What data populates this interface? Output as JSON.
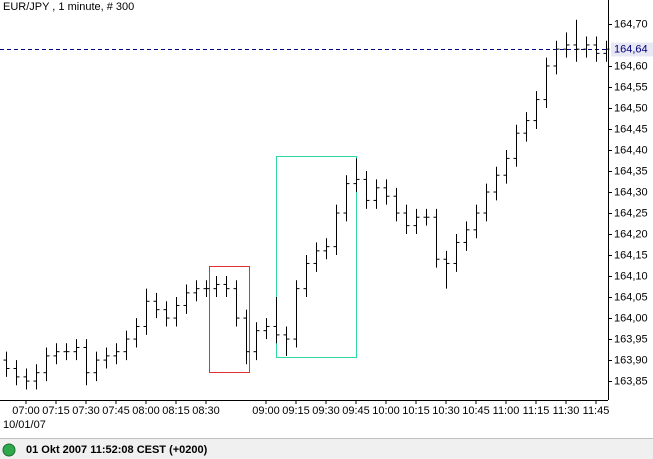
{
  "chart_data": {
    "type": "ohlc",
    "title": "EUR/JPY , 1 minute, # 300",
    "date_label": "10/01/07",
    "color": "#000000",
    "x": [
      "06:50",
      "06:55",
      "07:00",
      "07:05",
      "07:10",
      "07:15",
      "07:20",
      "07:25",
      "07:30",
      "07:35",
      "07:40",
      "07:45",
      "07:50",
      "07:55",
      "08:00",
      "08:05",
      "08:10",
      "08:15",
      "08:20",
      "08:25",
      "08:30",
      "08:35",
      "08:40",
      "08:45",
      "08:50",
      "08:55",
      "09:00",
      "09:05",
      "09:10",
      "09:15",
      "09:20",
      "09:25",
      "09:30",
      "09:35",
      "09:40",
      "09:45",
      "09:50",
      "09:55",
      "10:00",
      "10:05",
      "10:10",
      "10:15",
      "10:20",
      "10:25",
      "10:30",
      "10:35",
      "10:40",
      "10:45",
      "10:50",
      "10:55",
      "11:00",
      "11:05",
      "11:10",
      "11:15",
      "11:20",
      "11:25",
      "11:30",
      "11:35",
      "11:40",
      "11:45",
      "11:50"
    ],
    "open": [
      163.9,
      163.88,
      163.86,
      163.85,
      163.87,
      163.91,
      163.92,
      163.92,
      163.93,
      163.87,
      163.9,
      163.91,
      163.92,
      163.95,
      163.98,
      164.04,
      164.02,
      164.0,
      164.03,
      164.06,
      164.07,
      164.07,
      164.08,
      164.07,
      164.0,
      163.92,
      163.97,
      163.98,
      163.96,
      163.95,
      164.07,
      164.13,
      164.16,
      164.17,
      164.25,
      164.32,
      164.33,
      164.28,
      164.31,
      164.29,
      164.25,
      164.22,
      164.24,
      164.24,
      164.14,
      164.13,
      164.18,
      164.21,
      164.25,
      164.3,
      164.34,
      164.38,
      164.44,
      164.47,
      164.52,
      164.6,
      164.64,
      164.65,
      164.64,
      164.65,
      164.63
    ],
    "high": [
      163.92,
      163.9,
      163.88,
      163.89,
      163.93,
      163.94,
      163.94,
      163.95,
      163.95,
      163.92,
      163.93,
      163.94,
      163.97,
      164.0,
      164.07,
      164.06,
      164.04,
      164.05,
      164.08,
      164.09,
      164.09,
      164.1,
      164.1,
      164.09,
      164.02,
      163.99,
      164.0,
      164.05,
      163.98,
      164.09,
      164.15,
      164.18,
      164.19,
      164.27,
      164.34,
      164.38,
      164.35,
      164.33,
      164.33,
      164.31,
      164.27,
      164.26,
      164.26,
      164.26,
      164.16,
      164.2,
      164.23,
      164.27,
      164.32,
      164.36,
      164.4,
      164.46,
      164.49,
      164.54,
      164.62,
      164.66,
      164.68,
      164.71,
      164.67,
      164.67,
      164.66
    ],
    "low": [
      163.86,
      163.84,
      163.83,
      163.83,
      163.85,
      163.89,
      163.9,
      163.9,
      163.84,
      163.85,
      163.88,
      163.89,
      163.9,
      163.93,
      163.96,
      164.0,
      163.98,
      163.98,
      164.01,
      164.04,
      164.05,
      164.05,
      164.05,
      163.98,
      163.89,
      163.9,
      163.95,
      163.94,
      163.91,
      163.93,
      164.05,
      164.11,
      164.14,
      164.15,
      164.23,
      164.3,
      164.26,
      164.26,
      164.27,
      164.23,
      164.2,
      164.2,
      164.22,
      164.12,
      164.07,
      164.11,
      164.16,
      164.19,
      164.23,
      164.28,
      164.32,
      164.36,
      164.42,
      164.45,
      164.5,
      164.58,
      164.62,
      164.61,
      164.62,
      164.61,
      164.61
    ],
    "close": [
      163.88,
      163.86,
      163.85,
      163.87,
      163.91,
      163.92,
      163.92,
      163.93,
      163.87,
      163.9,
      163.91,
      163.92,
      163.95,
      163.98,
      164.04,
      164.02,
      164.0,
      164.03,
      164.06,
      164.07,
      164.07,
      164.08,
      164.07,
      164.0,
      163.92,
      163.97,
      163.98,
      163.96,
      163.95,
      164.07,
      164.13,
      164.16,
      164.17,
      164.25,
      164.32,
      164.33,
      164.28,
      164.31,
      164.29,
      164.25,
      164.22,
      164.24,
      164.24,
      164.14,
      164.13,
      164.18,
      164.21,
      164.25,
      164.3,
      164.34,
      164.38,
      164.44,
      164.47,
      164.52,
      164.6,
      164.64,
      164.65,
      164.64,
      164.65,
      164.63,
      164.64
    ],
    "xticks": [
      "07:00",
      "07:15",
      "07:30",
      "07:45",
      "08:00",
      "08:15",
      "08:30",
      "09:00",
      "09:15",
      "09:30",
      "09:45",
      "10:00",
      "10:15",
      "10:30",
      "10:45",
      "11:00",
      "11:15",
      "11:30",
      "11:45"
    ],
    "ylim": [
      163.805,
      164.757
    ],
    "yticks": [
      {
        "value": 163.85,
        "label": "163,85"
      },
      {
        "value": 163.9,
        "label": "163,90"
      },
      {
        "value": 163.95,
        "label": "163,95"
      },
      {
        "value": 164.0,
        "label": "164,00"
      },
      {
        "value": 164.05,
        "label": "164,05"
      },
      {
        "value": 164.1,
        "label": "164,10"
      },
      {
        "value": 164.15,
        "label": "164,15"
      },
      {
        "value": 164.2,
        "label": "164,20"
      },
      {
        "value": 164.25,
        "label": "164,25"
      },
      {
        "value": 164.3,
        "label": "164,30"
      },
      {
        "value": 164.35,
        "label": "164,35"
      },
      {
        "value": 164.4,
        "label": "164,40"
      },
      {
        "value": 164.45,
        "label": "164,45"
      },
      {
        "value": 164.5,
        "label": "164,50"
      },
      {
        "value": 164.55,
        "label": "164,55"
      },
      {
        "value": 164.6,
        "label": "164,60"
      },
      {
        "value": 164.7,
        "label": "164,70"
      }
    ],
    "reference_line": {
      "value": 164.64,
      "label": "164,64",
      "color": "#000080"
    }
  },
  "status_bar": {
    "text": "01 Okt 2007 11:52:08  CEST (+0200)"
  }
}
